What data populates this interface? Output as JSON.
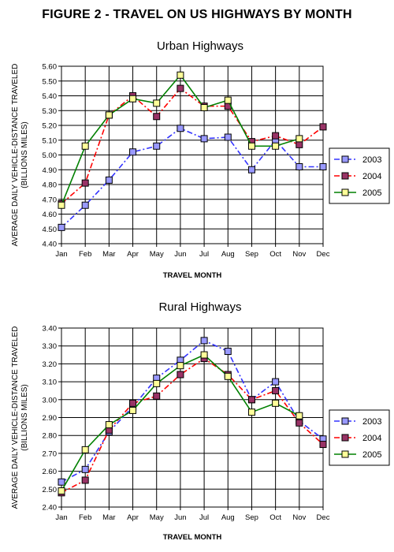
{
  "figure_title": "FIGURE 2 - TRAVEL ON US HIGHWAYS BY MONTH",
  "chart_data": [
    {
      "type": "line",
      "title": "Urban Highways",
      "xlabel": "TRAVEL MONTH",
      "ylabel": "AVERAGE DAILY VEHICLE-DISTANCE TRAVELED (BILLIONS MILES)",
      "ylim": [
        4.4,
        5.6
      ],
      "yticks": [
        "4.40",
        "4.50",
        "4.60",
        "4.70",
        "4.80",
        "4.90",
        "5.00",
        "5.10",
        "5.20",
        "5.30",
        "5.40",
        "5.50",
        "5.60"
      ],
      "categories": [
        "Jan",
        "Feb",
        "Mar",
        "Apr",
        "May",
        "Jun",
        "Jul",
        "Aug",
        "Sep",
        "Oct",
        "Nov",
        "Dec"
      ],
      "grid": true,
      "legend_position": "right",
      "series": [
        {
          "name": "2003",
          "color": "#3333ff",
          "marker_fill": "#9999ff",
          "dash": "dashdot",
          "values": [
            4.51,
            4.66,
            4.83,
            5.02,
            5.06,
            5.18,
            5.11,
            5.12,
            4.9,
            5.1,
            4.92,
            4.92
          ]
        },
        {
          "name": "2004",
          "color": "#ff0000",
          "marker_fill": "#993366",
          "dash": "dashdot",
          "values": [
            4.67,
            4.81,
            5.27,
            5.4,
            5.26,
            5.45,
            5.33,
            5.33,
            5.09,
            5.13,
            5.07,
            5.19
          ]
        },
        {
          "name": "2005",
          "color": "#008000",
          "marker_fill": "#ffff99",
          "dash": "solid",
          "values": [
            4.66,
            5.06,
            5.27,
            5.38,
            5.35,
            5.54,
            5.32,
            5.37,
            5.06,
            5.06,
            5.11,
            null
          ]
        }
      ]
    },
    {
      "type": "line",
      "title": "Rural Highways",
      "xlabel": "TRAVEL MONTH",
      "ylabel": "AVERAGE DAILY VEHICLE-DISTANCE TRAVELED (BILLIONS MILES)",
      "ylim": [
        2.4,
        3.4
      ],
      "yticks": [
        "2.40",
        "2.50",
        "2.60",
        "2.70",
        "2.80",
        "2.90",
        "3.00",
        "3.10",
        "3.20",
        "3.30",
        "3.40"
      ],
      "categories": [
        "Jan",
        "Feb",
        "Mar",
        "Apr",
        "May",
        "Jun",
        "Jul",
        "Aug",
        "Sep",
        "Oct",
        "Nov",
        "Dec"
      ],
      "grid": true,
      "legend_position": "right",
      "series": [
        {
          "name": "2003",
          "color": "#3333ff",
          "marker_fill": "#9999ff",
          "dash": "dashdot",
          "values": [
            2.54,
            2.61,
            2.82,
            2.96,
            3.12,
            3.22,
            3.33,
            3.27,
            3.0,
            3.1,
            2.88,
            2.78
          ]
        },
        {
          "name": "2004",
          "color": "#ff0000",
          "marker_fill": "#993366",
          "dash": "dashdot",
          "values": [
            2.48,
            2.55,
            2.83,
            2.98,
            3.02,
            3.14,
            3.23,
            3.14,
            3.0,
            3.05,
            2.87,
            2.75
          ]
        },
        {
          "name": "2005",
          "color": "#008000",
          "marker_fill": "#ffff99",
          "dash": "solid",
          "values": [
            2.49,
            2.72,
            2.86,
            2.94,
            3.09,
            3.19,
            3.25,
            3.13,
            2.93,
            2.98,
            2.91,
            null
          ]
        }
      ]
    }
  ]
}
